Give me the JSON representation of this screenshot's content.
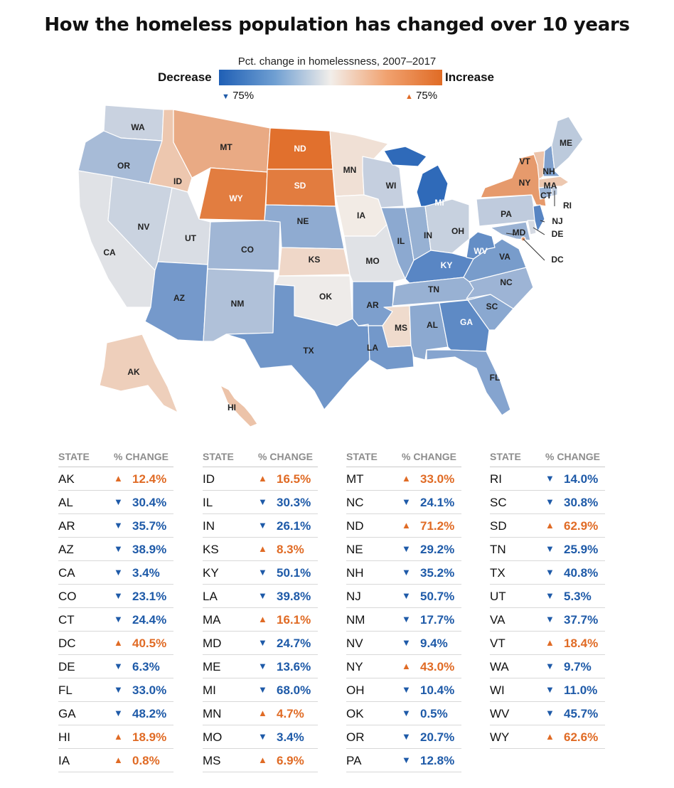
{
  "title": "How the homeless population has changed over 10 years",
  "legend": {
    "subtitle": "Pct. change in homelessness, 2007–2017",
    "left_label": "Decrease",
    "right_label": "Increase",
    "min_label": "75%",
    "max_label": "75%",
    "low_color": "#1f5fb5",
    "high_color": "#e06b25"
  },
  "table_headers": {
    "state": "STATE",
    "change": "% CHANGE"
  },
  "states": [
    {
      "state": "AK",
      "dir": "up",
      "value": "12.4%"
    },
    {
      "state": "AL",
      "dir": "down",
      "value": "30.4%"
    },
    {
      "state": "AR",
      "dir": "down",
      "value": "35.7%"
    },
    {
      "state": "AZ",
      "dir": "down",
      "value": "38.9%"
    },
    {
      "state": "CA",
      "dir": "down",
      "value": "3.4%"
    },
    {
      "state": "CO",
      "dir": "down",
      "value": "23.1%"
    },
    {
      "state": "CT",
      "dir": "down",
      "value": "24.4%"
    },
    {
      "state": "DC",
      "dir": "up",
      "value": "40.5%"
    },
    {
      "state": "DE",
      "dir": "down",
      "value": "6.3%"
    },
    {
      "state": "FL",
      "dir": "down",
      "value": "33.0%"
    },
    {
      "state": "GA",
      "dir": "down",
      "value": "48.2%"
    },
    {
      "state": "HI",
      "dir": "up",
      "value": "18.9%"
    },
    {
      "state": "IA",
      "dir": "up",
      "value": "0.8%"
    },
    {
      "state": "ID",
      "dir": "up",
      "value": "16.5%"
    },
    {
      "state": "IL",
      "dir": "down",
      "value": "30.3%"
    },
    {
      "state": "IN",
      "dir": "down",
      "value": "26.1%"
    },
    {
      "state": "KS",
      "dir": "up",
      "value": "8.3%"
    },
    {
      "state": "KY",
      "dir": "down",
      "value": "50.1%"
    },
    {
      "state": "LA",
      "dir": "down",
      "value": "39.8%"
    },
    {
      "state": "MA",
      "dir": "up",
      "value": "16.1%"
    },
    {
      "state": "MD",
      "dir": "down",
      "value": "24.7%"
    },
    {
      "state": "ME",
      "dir": "down",
      "value": "13.6%"
    },
    {
      "state": "MI",
      "dir": "down",
      "value": "68.0%"
    },
    {
      "state": "MN",
      "dir": "up",
      "value": "4.7%"
    },
    {
      "state": "MO",
      "dir": "down",
      "value": "3.4%"
    },
    {
      "state": "MS",
      "dir": "up",
      "value": "6.9%"
    },
    {
      "state": "MT",
      "dir": "up",
      "value": "33.0%"
    },
    {
      "state": "NC",
      "dir": "down",
      "value": "24.1%"
    },
    {
      "state": "ND",
      "dir": "up",
      "value": "71.2%"
    },
    {
      "state": "NE",
      "dir": "down",
      "value": "29.2%"
    },
    {
      "state": "NH",
      "dir": "down",
      "value": "35.2%"
    },
    {
      "state": "NJ",
      "dir": "down",
      "value": "50.7%"
    },
    {
      "state": "NM",
      "dir": "down",
      "value": "17.7%"
    },
    {
      "state": "NV",
      "dir": "down",
      "value": "9.4%"
    },
    {
      "state": "NY",
      "dir": "up",
      "value": "43.0%"
    },
    {
      "state": "OH",
      "dir": "down",
      "value": "10.4%"
    },
    {
      "state": "OK",
      "dir": "down",
      "value": "0.5%"
    },
    {
      "state": "OR",
      "dir": "down",
      "value": "20.7%"
    },
    {
      "state": "PA",
      "dir": "down",
      "value": "12.8%"
    },
    {
      "state": "RI",
      "dir": "down",
      "value": "14.0%"
    },
    {
      "state": "SC",
      "dir": "down",
      "value": "30.8%"
    },
    {
      "state": "SD",
      "dir": "up",
      "value": "62.9%"
    },
    {
      "state": "TN",
      "dir": "down",
      "value": "25.9%"
    },
    {
      "state": "TX",
      "dir": "down",
      "value": "40.8%"
    },
    {
      "state": "UT",
      "dir": "down",
      "value": "5.3%"
    },
    {
      "state": "VA",
      "dir": "down",
      "value": "37.7%"
    },
    {
      "state": "VT",
      "dir": "up",
      "value": "18.4%"
    },
    {
      "state": "WA",
      "dir": "down",
      "value": "9.7%"
    },
    {
      "state": "WI",
      "dir": "down",
      "value": "11.0%"
    },
    {
      "state": "WV",
      "dir": "down",
      "value": "45.7%"
    },
    {
      "state": "WY",
      "dir": "up",
      "value": "62.6%"
    }
  ]
}
